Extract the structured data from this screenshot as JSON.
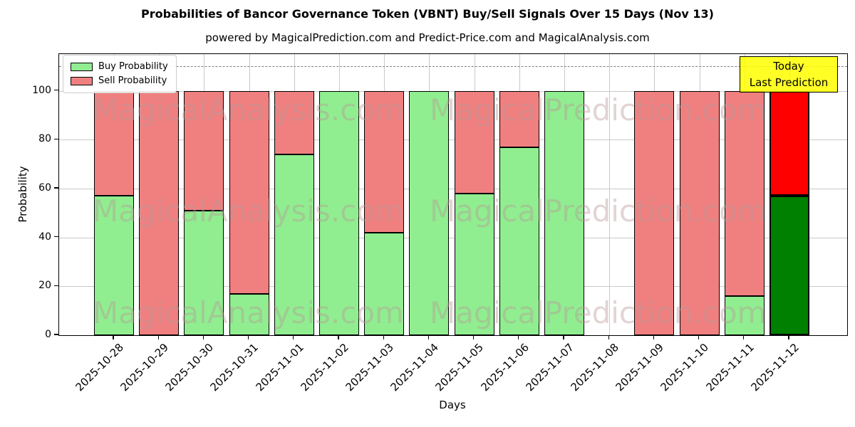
{
  "title": "Probabilities of Bancor Governance Token (VBNT) Buy/Sell Signals Over 15 Days (Nov 13)",
  "subtitle": "powered by MagicalPrediction.com and Predict-Price.com and MagicalAnalysis.com",
  "x_axis_label": "Days",
  "y_axis_label": "Probability",
  "legend": {
    "items": [
      {
        "label": "Buy Probability",
        "color": "#90EE90"
      },
      {
        "label": "Sell Probability",
        "color": "#F08080"
      }
    ]
  },
  "annotation": {
    "line1": "Today",
    "line2": "Last Prediction",
    "bg_color": "#FFFF00"
  },
  "watermarks": {
    "left_text": "MagicalAnalysis.com",
    "right_text": "MagicalPrediction.com"
  },
  "colors": {
    "grid": "#c9c9c9",
    "dashed_line": "#7f7f7f",
    "bar_edge": "#000000",
    "buy": "#90EE90",
    "sell": "#F08080",
    "today_buy": "#008000",
    "today_sell": "#FF0000",
    "watermark": "#bb9999",
    "annotation_bg": "#FFFF00"
  },
  "chart_data": {
    "type": "bar",
    "stacked": true,
    "title": "Probabilities of Bancor Governance Token (VBNT) Buy/Sell Signals Over 15 Days (Nov 13)",
    "subtitle": "powered by MagicalPrediction.com and Predict-Price.com and MagicalAnalysis.com",
    "xlabel": "Days",
    "ylabel": "Probability",
    "ylim": [
      0,
      115
    ],
    "y_ticks": [
      0,
      20,
      40,
      60,
      80,
      100
    ],
    "dashed_guide_y": 110,
    "grid": true,
    "legend_position": "upper left",
    "categories": [
      "2025-10-28",
      "2025-10-29",
      "2025-10-30",
      "2025-10-31",
      "2025-11-01",
      "2025-11-02",
      "2025-11-03",
      "2025-11-04",
      "2025-11-05",
      "2025-11-06",
      "2025-11-07",
      "2025-11-08",
      "2025-11-09",
      "2025-11-10",
      "2025-11-11",
      "2025-11-12"
    ],
    "series": [
      {
        "name": "Buy Probability",
        "values": [
          57,
          0,
          51,
          17,
          74,
          100,
          42,
          100,
          58,
          77,
          100,
          null,
          0,
          0,
          16,
          57
        ]
      },
      {
        "name": "Sell Probability",
        "values": [
          43,
          100,
          49,
          83,
          26,
          0,
          58,
          0,
          42,
          23,
          0,
          null,
          100,
          100,
          84,
          43
        ]
      }
    ],
    "today": {
      "index": 15,
      "label": "Today\nLast Prediction"
    }
  }
}
